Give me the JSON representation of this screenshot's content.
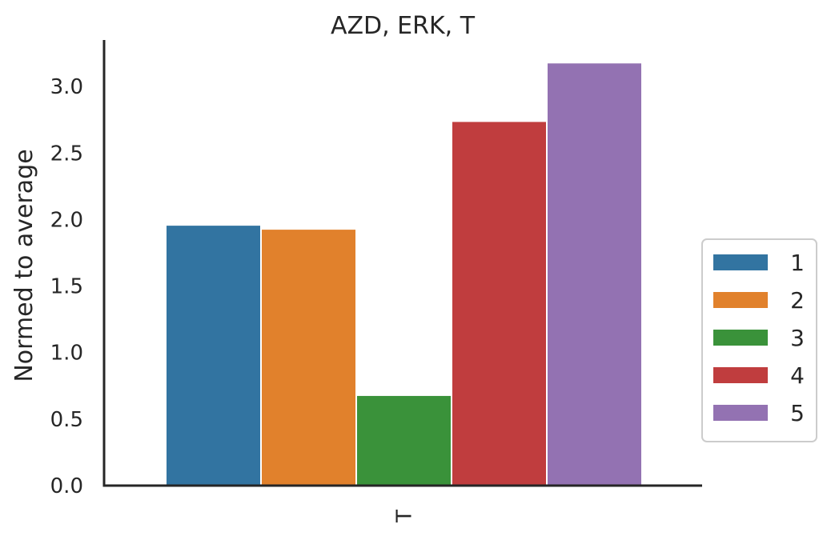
{
  "chart_data": {
    "type": "bar",
    "title": "AZD, ERK, T",
    "xlabel": "",
    "ylabel": "Normed to average",
    "categories": [
      "T"
    ],
    "series": [
      {
        "name": "1",
        "values": [
          1.96
        ],
        "color": "#3274a1"
      },
      {
        "name": "2",
        "values": [
          1.93
        ],
        "color": "#e1812c"
      },
      {
        "name": "3",
        "values": [
          0.68
        ],
        "color": "#3a923a"
      },
      {
        "name": "4",
        "values": [
          2.74
        ],
        "color": "#c03d3e"
      },
      {
        "name": "5",
        "values": [
          3.18
        ],
        "color": "#9372b2"
      }
    ],
    "ylim": [
      0,
      3.35
    ],
    "yticks": [
      "0.0",
      "0.5",
      "1.0",
      "1.5",
      "2.0",
      "2.5",
      "3.0"
    ],
    "grid": false,
    "legend_position": "right",
    "axis_color": "#262626"
  }
}
